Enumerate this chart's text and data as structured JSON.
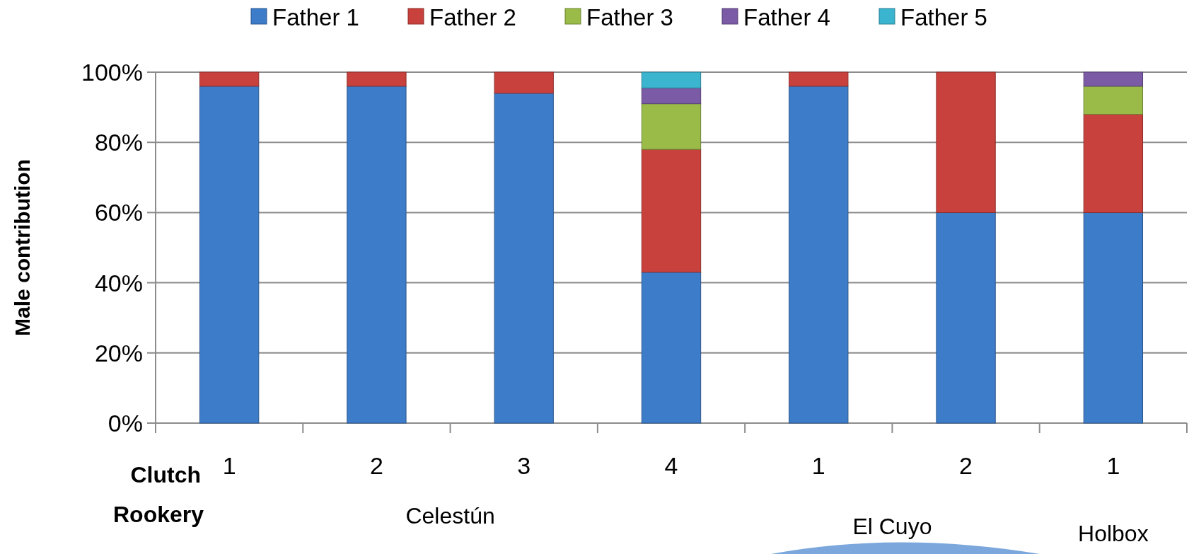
{
  "chart_data": {
    "type": "bar",
    "stacked": true,
    "ylabel": "Male contribution",
    "categories": [
      "1",
      "2",
      "3",
      "4",
      "1",
      "2",
      "1"
    ],
    "series": [
      {
        "name": "Father 1",
        "color": "#3d7cc9",
        "values": [
          96,
          96,
          94,
          43,
          96,
          60,
          60
        ]
      },
      {
        "name": "Father 2",
        "color": "#c9413d",
        "values": [
          4,
          4,
          6,
          35,
          4,
          40,
          28
        ]
      },
      {
        "name": "Father 3",
        "color": "#9bbb49",
        "values": [
          null,
          null,
          null,
          13,
          null,
          null,
          8
        ]
      },
      {
        "name": "Father 4",
        "color": "#7b5ba6",
        "values": [
          null,
          null,
          null,
          4.5,
          null,
          null,
          4
        ]
      },
      {
        "name": "Father 5",
        "color": "#3bb5cf",
        "values": [
          null,
          null,
          null,
          4.5,
          null,
          null,
          null
        ]
      }
    ],
    "ylim": [
      0,
      100
    ],
    "yticks": [
      {
        "value": 0,
        "label": "0%"
      },
      {
        "value": 20,
        "label": "20%"
      },
      {
        "value": 40,
        "label": "40%"
      },
      {
        "value": 60,
        "label": "60%"
      },
      {
        "value": 80,
        "label": "80%"
      },
      {
        "value": 100,
        "label": "100%"
      }
    ],
    "grid": "y",
    "legend": "top",
    "annotations": [
      "Clutch",
      "Rookery",
      "Celestún",
      "El Cuyo",
      "Holbox"
    ]
  }
}
